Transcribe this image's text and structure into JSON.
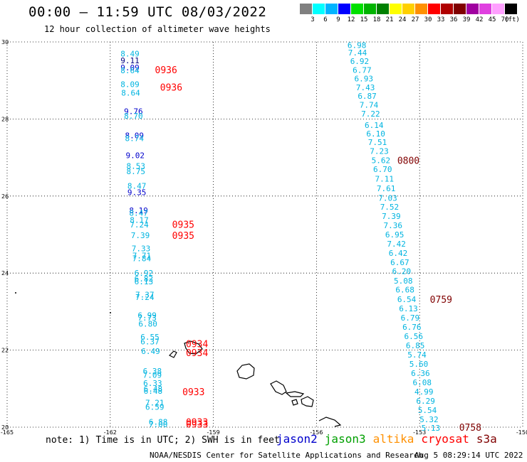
{
  "header": {
    "title": "00:00 – 11:59 UTC 08/03/2022",
    "subtitle": "12 hour collection of altimeter wave heights"
  },
  "color_scale": {
    "unit": "(ft)",
    "steps": [
      {
        "label": "3",
        "color": "#808080"
      },
      {
        "label": "6",
        "color": "#00ffff"
      },
      {
        "label": "9",
        "color": "#00b4ff"
      },
      {
        "label": "12",
        "color": "#0000ff"
      },
      {
        "label": "15",
        "color": "#00e000"
      },
      {
        "label": "18",
        "color": "#00b400"
      },
      {
        "label": "21",
        "color": "#008000"
      },
      {
        "label": "24",
        "color": "#ffff00"
      },
      {
        "label": "27",
        "color": "#ffd000"
      },
      {
        "label": "30",
        "color": "#ff9000"
      },
      {
        "label": "33",
        "color": "#ff0000"
      },
      {
        "label": "36",
        "color": "#b00000"
      },
      {
        "label": "39",
        "color": "#800000"
      },
      {
        "label": "42",
        "color": "#a000a0"
      },
      {
        "label": "45",
        "color": "#e040e0"
      },
      {
        "label": "70",
        "color": "#ffa0ff"
      },
      {
        "label": "",
        "color": "#000000"
      }
    ]
  },
  "footer": {
    "note": "note: 1) Time is in UTC; 2) SWH is in feet",
    "credit": "NOAA/NESDIS Center for Satellite Applications and Research",
    "generated": "Aug  5 08:29:14 UTC 2022",
    "satellites": [
      {
        "name": "jason2",
        "color": "#0000cc"
      },
      {
        "name": "jason3",
        "color": "#00a000"
      },
      {
        "name": "altika",
        "color": "#ff9000"
      },
      {
        "name": "cryosat",
        "color": "#ff0000"
      },
      {
        "name": "s3a",
        "color": "#800000"
      }
    ]
  },
  "chart_data": {
    "type": "scatter",
    "xlim": [
      -165,
      -150
    ],
    "ylim": [
      20,
      30
    ],
    "x_ticks": [
      "-165",
      "-162",
      "-159",
      "-156",
      "-153",
      "-150"
    ],
    "y_ticks": [
      "30",
      "28",
      "26",
      "24",
      "22",
      "20"
    ],
    "grid": true,
    "series": [
      {
        "track": "west",
        "color": "#00b4e0",
        "points": [
          {
            "lon": -161.7,
            "lat": 29.7,
            "value": "8.49"
          },
          {
            "lon": -161.7,
            "lat": 29.52,
            "value": "9.11",
            "color": "#000080"
          },
          {
            "lon": -161.7,
            "lat": 29.34,
            "value": "9.09",
            "color": "#0000cc"
          },
          {
            "lon": -161.7,
            "lat": 29.26,
            "value": "8.64"
          },
          {
            "lon": -161.7,
            "lat": 28.9,
            "value": "8.09"
          },
          {
            "lon": -161.68,
            "lat": 28.68,
            "value": "8.64"
          },
          {
            "lon": -161.6,
            "lat": 28.2,
            "value": "9.76",
            "color": "#0000cc"
          },
          {
            "lon": -161.6,
            "lat": 28.08,
            "value": "8.70"
          },
          {
            "lon": -161.57,
            "lat": 27.57,
            "value": "8.09",
            "color": "#0000cc"
          },
          {
            "lon": -161.57,
            "lat": 27.5,
            "value": "8.74"
          },
          {
            "lon": -161.55,
            "lat": 27.06,
            "value": "9.02",
            "color": "#0000cc"
          },
          {
            "lon": -161.53,
            "lat": 26.78,
            "value": "8.53"
          },
          {
            "lon": -161.53,
            "lat": 26.64,
            "value": "8.75"
          },
          {
            "lon": -161.5,
            "lat": 26.26,
            "value": "8.47"
          },
          {
            "lon": -161.5,
            "lat": 26.1,
            "value": "9.35",
            "color": "#0000cc"
          },
          {
            "lon": -161.45,
            "lat": 25.63,
            "value": "8.19",
            "color": "#0000cc"
          },
          {
            "lon": -161.45,
            "lat": 25.56,
            "value": "8.47"
          },
          {
            "lon": -161.43,
            "lat": 25.38,
            "value": "8.17"
          },
          {
            "lon": -161.43,
            "lat": 25.26,
            "value": "7.24"
          },
          {
            "lon": -161.4,
            "lat": 24.98,
            "value": "7.39"
          },
          {
            "lon": -161.38,
            "lat": 24.64,
            "value": "7.33"
          },
          {
            "lon": -161.36,
            "lat": 24.46,
            "value": "7.71"
          },
          {
            "lon": -161.36,
            "lat": 24.38,
            "value": "7.84"
          },
          {
            "lon": -161.3,
            "lat": 24.0,
            "value": "6.92"
          },
          {
            "lon": -161.3,
            "lat": 23.86,
            "value": "6.82"
          },
          {
            "lon": -161.3,
            "lat": 23.78,
            "value": "6.13"
          },
          {
            "lon": -161.27,
            "lat": 23.44,
            "value": "7.37"
          },
          {
            "lon": -161.27,
            "lat": 23.38,
            "value": "7.24"
          },
          {
            "lon": -161.2,
            "lat": 22.91,
            "value": "6.99"
          },
          {
            "lon": -161.2,
            "lat": 22.84,
            "value": "7.73"
          },
          {
            "lon": -161.18,
            "lat": 22.68,
            "value": "6.80"
          },
          {
            "lon": -161.12,
            "lat": 22.34,
            "value": "6.55"
          },
          {
            "lon": -161.12,
            "lat": 22.22,
            "value": "6.37"
          },
          {
            "lon": -161.1,
            "lat": 21.97,
            "value": "6.49"
          },
          {
            "lon": -161.05,
            "lat": 21.46,
            "value": "6.38"
          },
          {
            "lon": -161.05,
            "lat": 21.36,
            "value": "7.09"
          },
          {
            "lon": -161.04,
            "lat": 21.14,
            "value": "6.33"
          },
          {
            "lon": -161.03,
            "lat": 21.0,
            "value": "6.48"
          },
          {
            "lon": -161.03,
            "lat": 20.94,
            "value": "6.48"
          },
          {
            "lon": -160.98,
            "lat": 20.64,
            "value": "7.21"
          },
          {
            "lon": -160.98,
            "lat": 20.53,
            "value": "6.59"
          },
          {
            "lon": -160.88,
            "lat": 20.14,
            "value": "6.88"
          },
          {
            "lon": -160.88,
            "lat": 20.07,
            "value": "7.00"
          }
        ],
        "time_labels": [
          {
            "lon": -160.7,
            "lat": 29.28,
            "value": "0936"
          },
          {
            "lon": -160.55,
            "lat": 28.83,
            "value": "0936"
          },
          {
            "lon": -160.2,
            "lat": 25.27,
            "value": "0935"
          },
          {
            "lon": -160.2,
            "lat": 24.98,
            "value": "0935"
          },
          {
            "lon": -159.8,
            "lat": 22.17,
            "value": "0934"
          },
          {
            "lon": -159.8,
            "lat": 21.94,
            "value": "0934"
          },
          {
            "lon": -159.9,
            "lat": 20.92,
            "value": "0933"
          },
          {
            "lon": -159.8,
            "lat": 20.14,
            "value": "0933"
          },
          {
            "lon": -159.8,
            "lat": 20.08,
            "value": "0933"
          }
        ]
      },
      {
        "track": "east",
        "color": "#00b4e0",
        "points": [
          {
            "lon": -155.1,
            "lat": 29.92,
            "value": "6.98"
          },
          {
            "lon": -155.08,
            "lat": 29.72,
            "value": "7.44"
          },
          {
            "lon": -155.02,
            "lat": 29.5,
            "value": "6.92"
          },
          {
            "lon": -154.95,
            "lat": 29.27,
            "value": "6.77"
          },
          {
            "lon": -154.9,
            "lat": 29.05,
            "value": "6.93"
          },
          {
            "lon": -154.85,
            "lat": 28.82,
            "value": "7.43"
          },
          {
            "lon": -154.8,
            "lat": 28.6,
            "value": "6.87"
          },
          {
            "lon": -154.75,
            "lat": 28.37,
            "value": "7.74"
          },
          {
            "lon": -154.7,
            "lat": 28.14,
            "value": "7.22"
          },
          {
            "lon": -154.6,
            "lat": 27.84,
            "value": "6.14"
          },
          {
            "lon": -154.55,
            "lat": 27.62,
            "value": "6.10"
          },
          {
            "lon": -154.5,
            "lat": 27.4,
            "value": "7.51"
          },
          {
            "lon": -154.45,
            "lat": 27.17,
            "value": "7.23"
          },
          {
            "lon": -154.4,
            "lat": 26.93,
            "value": "5.62"
          },
          {
            "lon": -154.35,
            "lat": 26.7,
            "value": "6.70"
          },
          {
            "lon": -154.3,
            "lat": 26.45,
            "value": "7.11"
          },
          {
            "lon": -154.25,
            "lat": 26.2,
            "value": "7.61"
          },
          {
            "lon": -154.2,
            "lat": 25.95,
            "value": "7.03"
          },
          {
            "lon": -154.15,
            "lat": 25.72,
            "value": "7.52"
          },
          {
            "lon": -154.1,
            "lat": 25.48,
            "value": "7.39"
          },
          {
            "lon": -154.05,
            "lat": 25.24,
            "value": "7.36"
          },
          {
            "lon": -154.0,
            "lat": 25.0,
            "value": "6.95"
          },
          {
            "lon": -153.95,
            "lat": 24.76,
            "value": "7.42"
          },
          {
            "lon": -153.9,
            "lat": 24.52,
            "value": "6.42"
          },
          {
            "lon": -153.85,
            "lat": 24.28,
            "value": "6.67"
          },
          {
            "lon": -153.8,
            "lat": 24.05,
            "value": "6.20"
          },
          {
            "lon": -153.75,
            "lat": 23.8,
            "value": "5.08"
          },
          {
            "lon": -153.7,
            "lat": 23.57,
            "value": "6.68"
          },
          {
            "lon": -153.65,
            "lat": 23.32,
            "value": "6.54"
          },
          {
            "lon": -153.6,
            "lat": 23.08,
            "value": "6.13"
          },
          {
            "lon": -153.55,
            "lat": 22.84,
            "value": "6.79"
          },
          {
            "lon": -153.5,
            "lat": 22.6,
            "value": "6.76"
          },
          {
            "lon": -153.45,
            "lat": 22.36,
            "value": "6.56"
          },
          {
            "lon": -153.4,
            "lat": 22.12,
            "value": "6.85"
          },
          {
            "lon": -153.35,
            "lat": 21.88,
            "value": "5.74"
          },
          {
            "lon": -153.3,
            "lat": 21.64,
            "value": "5.60"
          },
          {
            "lon": -153.25,
            "lat": 21.4,
            "value": "6.36"
          },
          {
            "lon": -153.2,
            "lat": 21.16,
            "value": "6.08"
          },
          {
            "lon": -153.15,
            "lat": 20.92,
            "value": "4.99"
          },
          {
            "lon": -153.1,
            "lat": 20.68,
            "value": "6.29"
          },
          {
            "lon": -153.05,
            "lat": 20.44,
            "value": "5.54"
          },
          {
            "lon": -153.0,
            "lat": 20.2,
            "value": "5.32"
          },
          {
            "lon": -152.95,
            "lat": 19.98,
            "value": "5.13"
          }
        ],
        "time_labels": [
          {
            "lon": -153.65,
            "lat": 26.93,
            "value": "0800"
          },
          {
            "lon": -152.7,
            "lat": 23.32,
            "value": "0759"
          },
          {
            "lon": -151.85,
            "lat": 20.0,
            "value": "0758"
          }
        ]
      }
    ],
    "time_label_colors": {
      "west": "#ff0000",
      "east": "#800000"
    }
  }
}
